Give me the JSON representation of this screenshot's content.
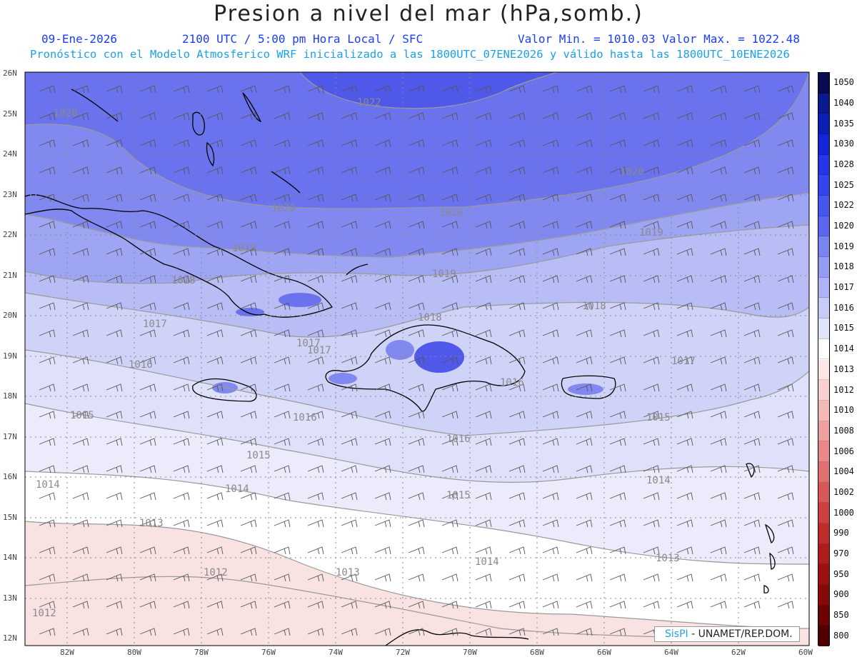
{
  "title": "Presion a nivel del mar (hPa,somb.)",
  "header": {
    "date": "09-Ene-2026",
    "time": "2100 UTC / 5:00 pm Hora Local / SFC",
    "minmax": "Valor Min. = 1010.03  Valor Max. = 1022.48",
    "model_info": "Pronóstico con el Modelo Atmosferico WRF inicializado a las 1800UTC_07ENE2026 y válido hasta las  1800UTC_10ENE2026"
  },
  "credit": {
    "brand": "SisPI",
    "org": "- UNAMET/REP.DOM."
  },
  "axes": {
    "lat_labels": [
      "26N",
      "25N",
      "24N",
      "23N",
      "22N",
      "21N",
      "20N",
      "19N",
      "18N",
      "17N",
      "16N",
      "15N",
      "14N",
      "13N",
      "12N"
    ],
    "lon_labels": [
      "82W",
      "80W",
      "78W",
      "76W",
      "74W",
      "72W",
      "70W",
      "68W",
      "66W",
      "64W",
      "62W",
      "60W"
    ]
  },
  "colorbar": {
    "levels": [
      "1050",
      "1040",
      "1035",
      "1030",
      "1028",
      "1025",
      "1022",
      "1020",
      "1019",
      "1018",
      "1017",
      "1016",
      "1015",
      "1014",
      "1013",
      "1012",
      "1010",
      "1008",
      "1006",
      "1004",
      "1002",
      "1000",
      "990",
      "970",
      "950",
      "900",
      "850",
      "800"
    ],
    "colors": [
      "#0a0a50",
      "#0a1a8c",
      "#0b1fb4",
      "#1226d6",
      "#2536e6",
      "#3445ec",
      "#4656ee",
      "#5a67ee",
      "#7a84f0",
      "#949cf2",
      "#adb3f5",
      "#c7cbf7",
      "#e2e4fa",
      "#ffffff",
      "#fce6e6",
      "#f8d0d0",
      "#f3b8b8",
      "#eea0a0",
      "#e88888",
      "#e07070",
      "#d65858",
      "#cc4040",
      "#c02c2c",
      "#b01c1c",
      "#9c1010",
      "#860808",
      "#6c0404",
      "#500000"
    ]
  },
  "contour_labels": [
    "1022",
    "1020",
    "1020",
    "1020",
    "1020",
    "1019",
    "1019",
    "1019",
    "1018",
    "1018",
    "1018",
    "1017",
    "1017",
    "1017",
    "1017",
    "1016",
    "1016",
    "1016",
    "1016",
    "1015",
    "1015",
    "1015",
    "1015",
    "1014",
    "1014",
    "1014",
    "1014",
    "1013",
    "1013",
    "1013",
    "1012",
    "1012"
  ]
}
